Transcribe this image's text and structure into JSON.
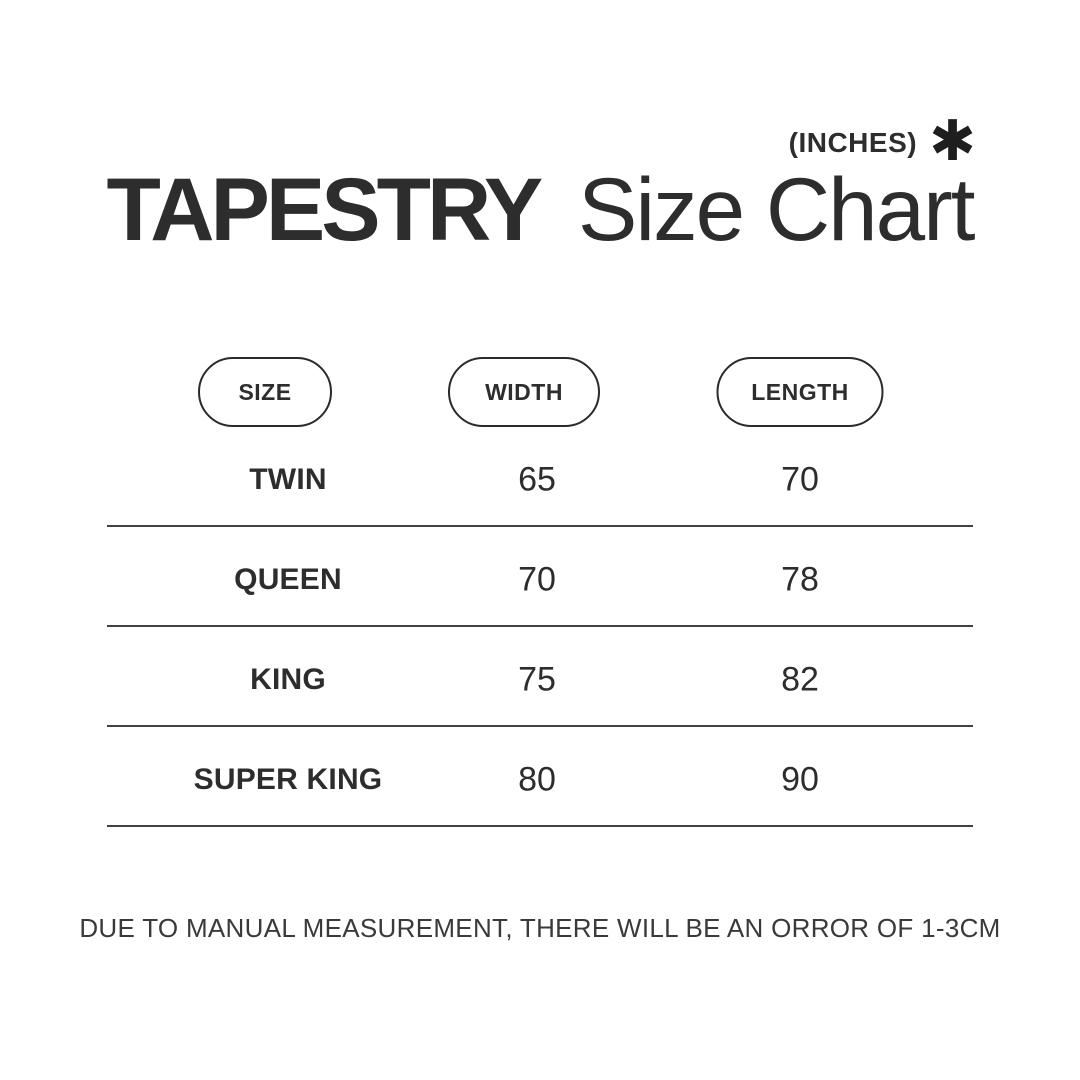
{
  "page": {
    "background_color": "#ffffff",
    "text_color": "#2d2d2d",
    "divider_color": "#414141"
  },
  "header": {
    "unit_label": "(INCHES)",
    "asterisk_icon": "✱",
    "title_primary": "TAPESTRY",
    "title_secondary": "Size Chart"
  },
  "chart_data": {
    "type": "table",
    "title": "TAPESTRY Size Chart",
    "unit": "(INCHES)",
    "columns": [
      "SIZE",
      "WIDTH",
      "LENGTH"
    ],
    "rows": [
      [
        "TWIN",
        65,
        70
      ],
      [
        "QUEEN",
        70,
        78
      ],
      [
        "KING",
        75,
        82
      ],
      [
        "SUPER KING",
        80,
        90
      ]
    ],
    "note": "DUE TO MANUAL MEASUREMENT, THERE WILL BE AN ORROR OF 1-3CM"
  }
}
